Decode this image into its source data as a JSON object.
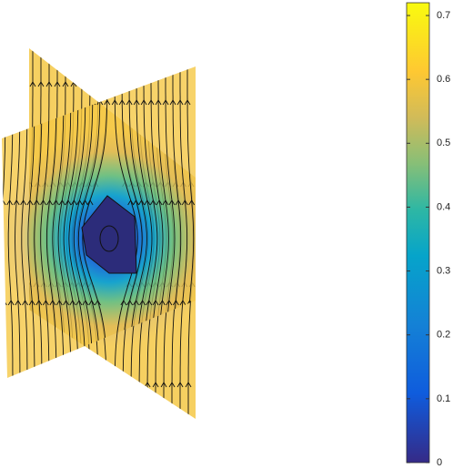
{
  "chart_data": {
    "type": "slice",
    "colormap": "parula",
    "clim": [
      0,
      0.72
    ],
    "cticks": [
      0,
      0.1,
      0.2,
      0.3,
      0.4,
      0.5,
      0.6,
      0.7
    ]
  }
}
